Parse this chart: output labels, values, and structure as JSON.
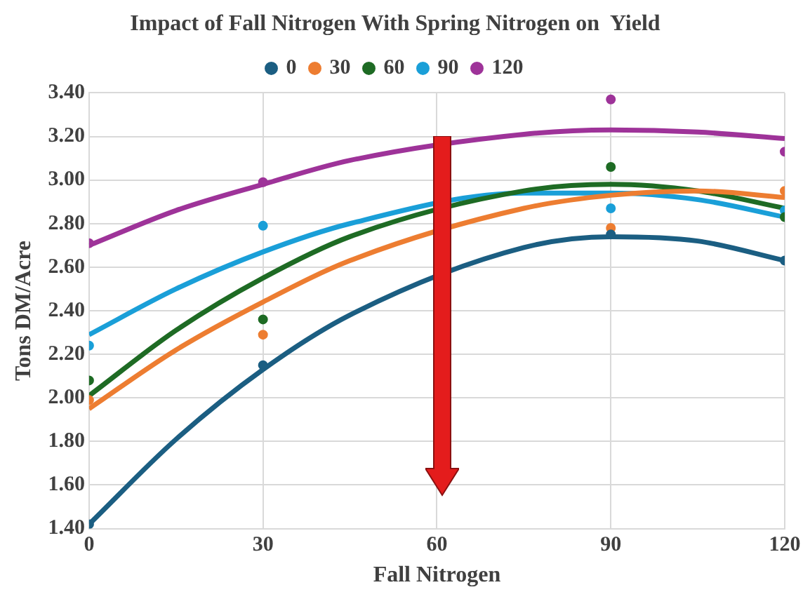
{
  "chart_data": {
    "type": "scatter",
    "title": "Impact of Fall Nitrogen With Spring Nitrogen on  Yield",
    "xlabel": "Fall Nitrogen",
    "ylabel": "Tons DM/Acre",
    "xlim": [
      0,
      120
    ],
    "xticks": [
      0,
      30,
      60,
      90,
      120
    ],
    "ylim": [
      1.4,
      3.4
    ],
    "yticks": [
      {
        "value": 1.4,
        "label": "1.40"
      },
      {
        "value": 1.6,
        "label": "1.60"
      },
      {
        "value": 1.8,
        "label": "1.80"
      },
      {
        "value": 2.0,
        "label": "2.00"
      },
      {
        "value": 2.2,
        "label": "2.20"
      },
      {
        "value": 2.4,
        "label": "2.40"
      },
      {
        "value": 2.6,
        "label": "2.60"
      },
      {
        "value": 2.8,
        "label": "2.80"
      },
      {
        "value": 3.0,
        "label": "3.00"
      },
      {
        "value": 3.2,
        "label": "3.20"
      },
      {
        "value": 3.4,
        "label": "3.40"
      }
    ],
    "grid": true,
    "legend": "top",
    "marker": "circle",
    "series": [
      {
        "name": "0",
        "color": "#1b5e82",
        "x": [
          0,
          30,
          90,
          120
        ],
        "values": [
          1.42,
          2.15,
          2.75,
          2.63
        ]
      },
      {
        "name": "30",
        "color": "#ed7d31",
        "x": [
          0,
          30,
          90,
          120
        ],
        "values": [
          1.99,
          2.29,
          2.78,
          2.95
        ]
      },
      {
        "name": "60",
        "color": "#1e6b24",
        "x": [
          0,
          30,
          90,
          120
        ],
        "values": [
          2.08,
          2.36,
          3.06,
          2.83
        ]
      },
      {
        "name": "90",
        "color": "#1a9fd8",
        "x": [
          0,
          30,
          90,
          120
        ],
        "values": [
          2.24,
          2.79,
          2.87,
          2.86
        ]
      },
      {
        "name": "120",
        "color": "#9e3399",
        "x": [
          0,
          30,
          90,
          120
        ],
        "values": [
          2.71,
          2.99,
          3.37,
          3.13
        ]
      },
      {
        "type": "line",
        "marker": "none",
        "color": "#1b5e82",
        "x": [
          0,
          15,
          30,
          45,
          75,
          90,
          105,
          120
        ],
        "values": [
          1.42,
          1.81,
          2.13,
          2.38,
          2.69,
          2.74,
          2.72,
          2.63
        ]
      },
      {
        "type": "line",
        "marker": "none",
        "color": "#ed7d31",
        "x": [
          0,
          15,
          30,
          45,
          75,
          90,
          105,
          120
        ],
        "values": [
          1.95,
          2.22,
          2.44,
          2.63,
          2.87,
          2.93,
          2.95,
          2.92
        ]
      },
      {
        "type": "line",
        "marker": "none",
        "color": "#1e6b24",
        "x": [
          0,
          15,
          30,
          45,
          75,
          90,
          105,
          120
        ],
        "values": [
          2.01,
          2.31,
          2.55,
          2.74,
          2.95,
          2.98,
          2.95,
          2.87
        ]
      },
      {
        "type": "line",
        "marker": "none",
        "color": "#1a9fd8",
        "x": [
          0,
          15,
          30,
          45,
          75,
          90,
          105,
          120
        ],
        "values": [
          2.29,
          2.5,
          2.67,
          2.8,
          2.94,
          2.94,
          2.91,
          2.83
        ]
      },
      {
        "type": "line",
        "marker": "none",
        "color": "#9e3399",
        "x": [
          0,
          15,
          30,
          45,
          75,
          90,
          105,
          120
        ],
        "values": [
          2.7,
          2.86,
          2.98,
          3.09,
          3.21,
          3.23,
          3.22,
          3.19
        ]
      }
    ]
  }
}
